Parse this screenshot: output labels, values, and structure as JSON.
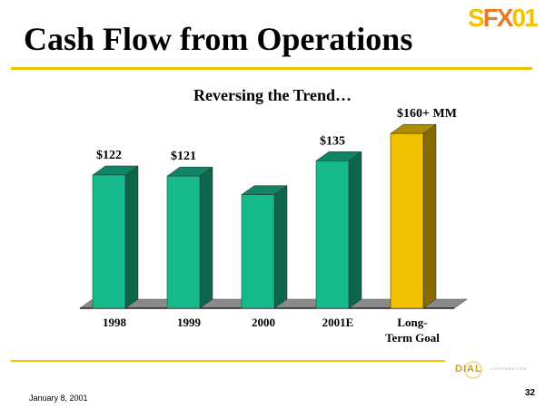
{
  "slide": {
    "title": "Cash Flow from Operations",
    "logo_text": "SFX01",
    "footer_date": "January 8, 2001",
    "page_number": "32",
    "company_logo": "DIAL",
    "company_logo_sub": "CORPORATION"
  },
  "chart_data": {
    "type": "bar",
    "title": "Reversing the Trend…",
    "categories": [
      "1998",
      "1999",
      "2000",
      "2001E",
      "Long-\nTerm Goal"
    ],
    "values": [
      122,
      121,
      104,
      135,
      160
    ],
    "data_labels": [
      "$122",
      "$121",
      "",
      "$135",
      "$160+ MM"
    ],
    "colors": [
      "#15b98b",
      "#15b98b",
      "#15b98b",
      "#15b98b",
      "#f2c200"
    ],
    "ylim": [
      0,
      160
    ],
    "grid": false,
    "legend": "none",
    "style": "3d"
  }
}
